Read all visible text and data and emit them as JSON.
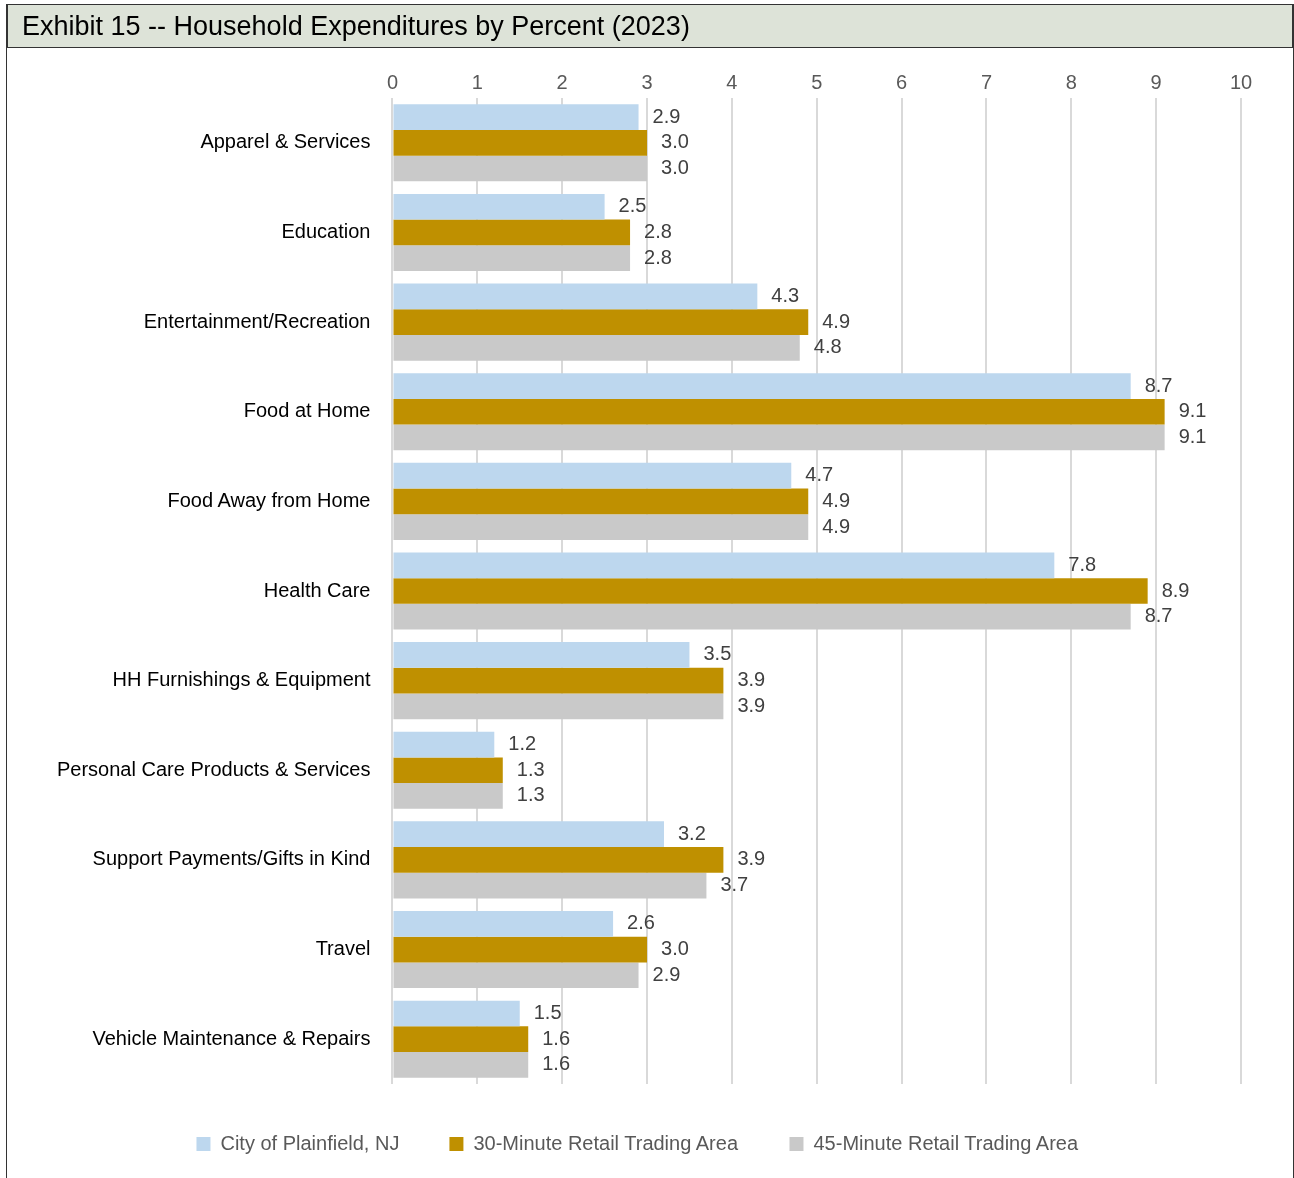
{
  "chart_data": {
    "type": "bar",
    "orientation": "horizontal",
    "title": "Exhibit 15 -- Household Expenditures by Percent (2023)",
    "categories": [
      "Apparel & Services",
      "Education",
      "Entertainment/Recreation",
      "Food at Home",
      "Food Away from Home",
      "Health Care",
      "HH Furnishings & Equipment",
      "Personal Care Products & Services",
      "Support Payments/Gifts in Kind",
      "Travel",
      "Vehicle Maintenance & Repairs"
    ],
    "series": [
      {
        "name": "City of Plainfield, NJ",
        "color": "#bdd7ee",
        "values": [
          2.9,
          2.5,
          4.3,
          8.7,
          4.7,
          7.8,
          3.5,
          1.2,
          3.2,
          2.6,
          1.5
        ],
        "value_labels": [
          "2.9",
          "2.5",
          "4.3",
          "8.7",
          "4.7",
          "7.8",
          "3.5",
          "1.2",
          "3.2",
          "2.6",
          "1.5"
        ]
      },
      {
        "name": "30-Minute Retail Trading Area",
        "color": "#bf9000",
        "values": [
          3.0,
          2.8,
          4.9,
          9.1,
          4.9,
          8.9,
          3.9,
          1.3,
          3.9,
          3.0,
          1.6
        ],
        "value_labels": [
          "3.0",
          "2.8",
          "4.9",
          "9.1",
          "4.9",
          "8.9",
          "3.9",
          "1.3",
          "3.9",
          "3.0",
          "1.6"
        ]
      },
      {
        "name": "45-Minute Retail Trading Area",
        "color": "#c9c9c9",
        "values": [
          3.0,
          2.8,
          4.8,
          9.1,
          4.9,
          8.7,
          3.9,
          1.3,
          3.7,
          2.9,
          1.6
        ],
        "value_labels": [
          "3.0",
          "2.8",
          "4.8",
          "9.1",
          "4.9",
          "8.7",
          "3.9",
          "1.3",
          "3.7",
          "2.9",
          "1.6"
        ]
      }
    ],
    "xlim": [
      0,
      10
    ],
    "xticks": [
      0,
      1,
      2,
      3,
      4,
      5,
      6,
      7,
      8,
      9,
      10
    ],
    "grid": "x",
    "legend": "bottom"
  }
}
